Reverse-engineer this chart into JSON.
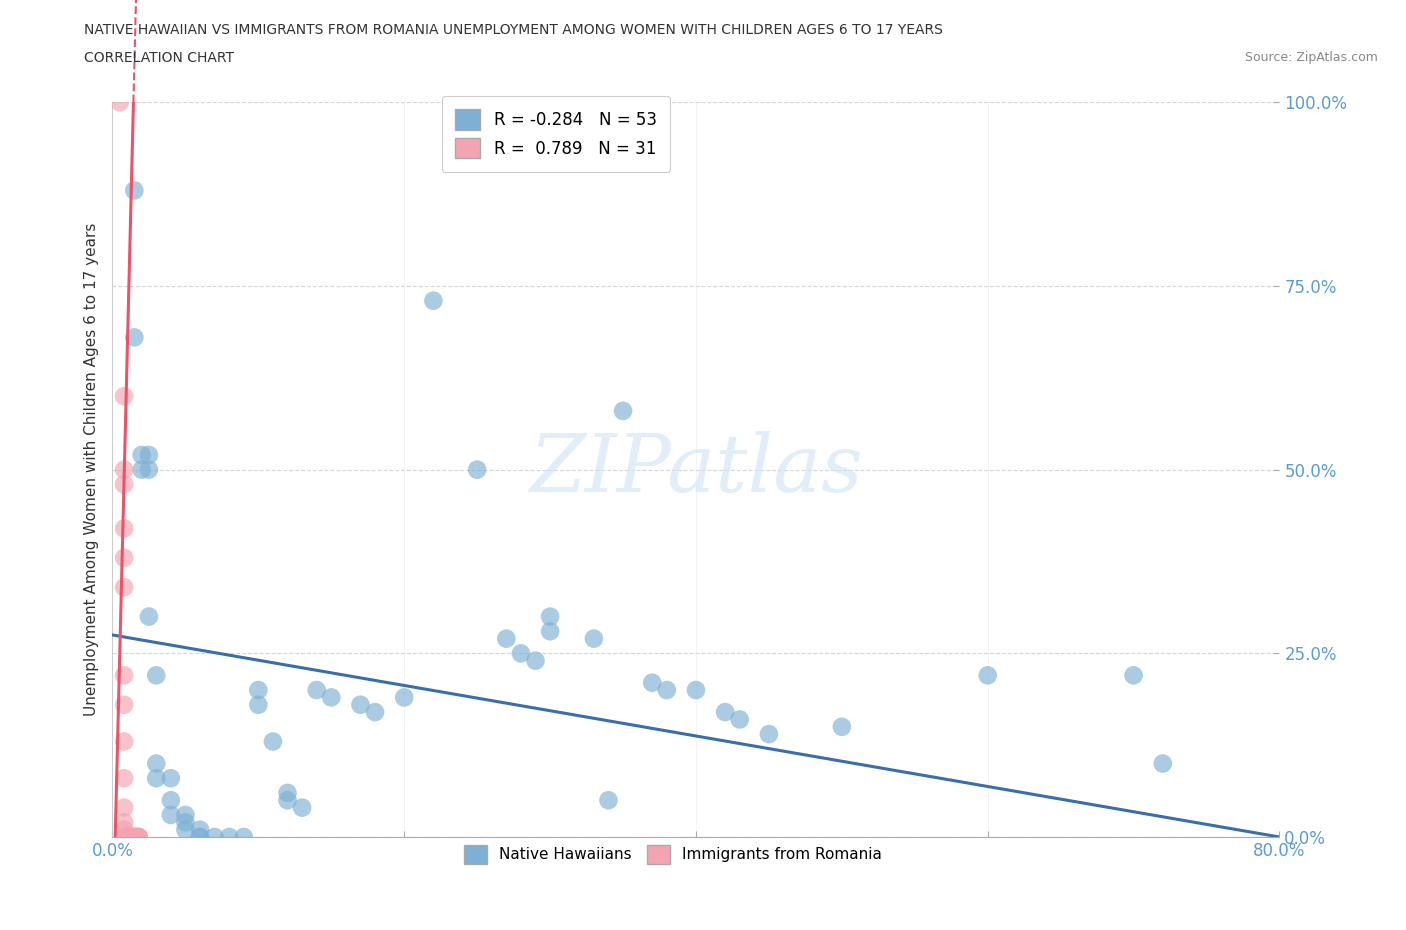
{
  "title_line1": "NATIVE HAWAIIAN VS IMMIGRANTS FROM ROMANIA UNEMPLOYMENT AMONG WOMEN WITH CHILDREN AGES 6 TO 17 YEARS",
  "title_line2": "CORRELATION CHART",
  "source": "Source: ZipAtlas.com",
  "ylabel": "Unemployment Among Women with Children Ages 6 to 17 years",
  "xlim": [
    0.0,
    0.8
  ],
  "ylim": [
    0.0,
    1.0
  ],
  "xticks": [
    0.0,
    0.2,
    0.4,
    0.6,
    0.8
  ],
  "yticks": [
    0.0,
    0.25,
    0.5,
    0.75,
    1.0
  ],
  "xticklabels": [
    "0.0%",
    "",
    "",
    "",
    "80.0%"
  ],
  "yticklabels_right": [
    "0.0%",
    "25.0%",
    "50.0%",
    "75.0%",
    "100.0%"
  ],
  "blue_color": "#7eb0d5",
  "pink_color": "#f4a4b0",
  "blue_line_color": "#3a6ea8",
  "pink_line_color": "#e8546a",
  "watermark": "ZIPatlas",
  "legend_R_blue": "-0.284",
  "legend_N_blue": "53",
  "legend_R_pink": "0.789",
  "legend_N_pink": "31",
  "blue_scatter": [
    [
      0.015,
      0.88
    ],
    [
      0.015,
      0.68
    ],
    [
      0.02,
      0.52
    ],
    [
      0.02,
      0.5
    ],
    [
      0.025,
      0.3
    ],
    [
      0.025,
      0.52
    ],
    [
      0.025,
      0.5
    ],
    [
      0.03,
      0.22
    ],
    [
      0.03,
      0.1
    ],
    [
      0.03,
      0.08
    ],
    [
      0.04,
      0.08
    ],
    [
      0.04,
      0.05
    ],
    [
      0.04,
      0.03
    ],
    [
      0.05,
      0.03
    ],
    [
      0.05,
      0.02
    ],
    [
      0.05,
      0.01
    ],
    [
      0.06,
      0.01
    ],
    [
      0.06,
      0.0
    ],
    [
      0.06,
      0.0
    ],
    [
      0.07,
      0.0
    ],
    [
      0.08,
      0.0
    ],
    [
      0.09,
      0.0
    ],
    [
      0.1,
      0.2
    ],
    [
      0.1,
      0.18
    ],
    [
      0.11,
      0.13
    ],
    [
      0.12,
      0.06
    ],
    [
      0.12,
      0.05
    ],
    [
      0.13,
      0.04
    ],
    [
      0.14,
      0.2
    ],
    [
      0.15,
      0.19
    ],
    [
      0.17,
      0.18
    ],
    [
      0.18,
      0.17
    ],
    [
      0.2,
      0.19
    ],
    [
      0.22,
      0.73
    ],
    [
      0.25,
      0.5
    ],
    [
      0.27,
      0.27
    ],
    [
      0.28,
      0.25
    ],
    [
      0.29,
      0.24
    ],
    [
      0.3,
      0.3
    ],
    [
      0.3,
      0.28
    ],
    [
      0.33,
      0.27
    ],
    [
      0.34,
      0.05
    ],
    [
      0.35,
      0.58
    ],
    [
      0.37,
      0.21
    ],
    [
      0.38,
      0.2
    ],
    [
      0.4,
      0.2
    ],
    [
      0.42,
      0.17
    ],
    [
      0.43,
      0.16
    ],
    [
      0.45,
      0.14
    ],
    [
      0.5,
      0.15
    ],
    [
      0.6,
      0.22
    ],
    [
      0.7,
      0.22
    ],
    [
      0.72,
      0.1
    ]
  ],
  "pink_scatter": [
    [
      0.005,
      1.0
    ],
    [
      0.008,
      0.6
    ],
    [
      0.008,
      0.5
    ],
    [
      0.008,
      0.48
    ],
    [
      0.008,
      0.42
    ],
    [
      0.008,
      0.38
    ],
    [
      0.008,
      0.34
    ],
    [
      0.008,
      0.22
    ],
    [
      0.008,
      0.18
    ],
    [
      0.008,
      0.13
    ],
    [
      0.008,
      0.08
    ],
    [
      0.008,
      0.04
    ],
    [
      0.008,
      0.02
    ],
    [
      0.008,
      0.01
    ],
    [
      0.008,
      0.0
    ],
    [
      0.01,
      0.0
    ],
    [
      0.01,
      0.0
    ],
    [
      0.01,
      0.0
    ],
    [
      0.012,
      0.0
    ],
    [
      0.012,
      0.0
    ],
    [
      0.012,
      0.0
    ],
    [
      0.013,
      0.0
    ],
    [
      0.013,
      0.0
    ],
    [
      0.015,
      0.0
    ],
    [
      0.015,
      0.0
    ],
    [
      0.015,
      0.0
    ],
    [
      0.016,
      0.0
    ],
    [
      0.016,
      0.0
    ],
    [
      0.018,
      0.0
    ],
    [
      0.018,
      0.0
    ],
    [
      0.018,
      0.0
    ]
  ],
  "blue_line_x": [
    0.0,
    0.8
  ],
  "blue_line_y": [
    0.275,
    0.0
  ],
  "pink_line_x0": 0.0,
  "pink_line_y0": 0.0,
  "pink_line_slope": 80.0
}
